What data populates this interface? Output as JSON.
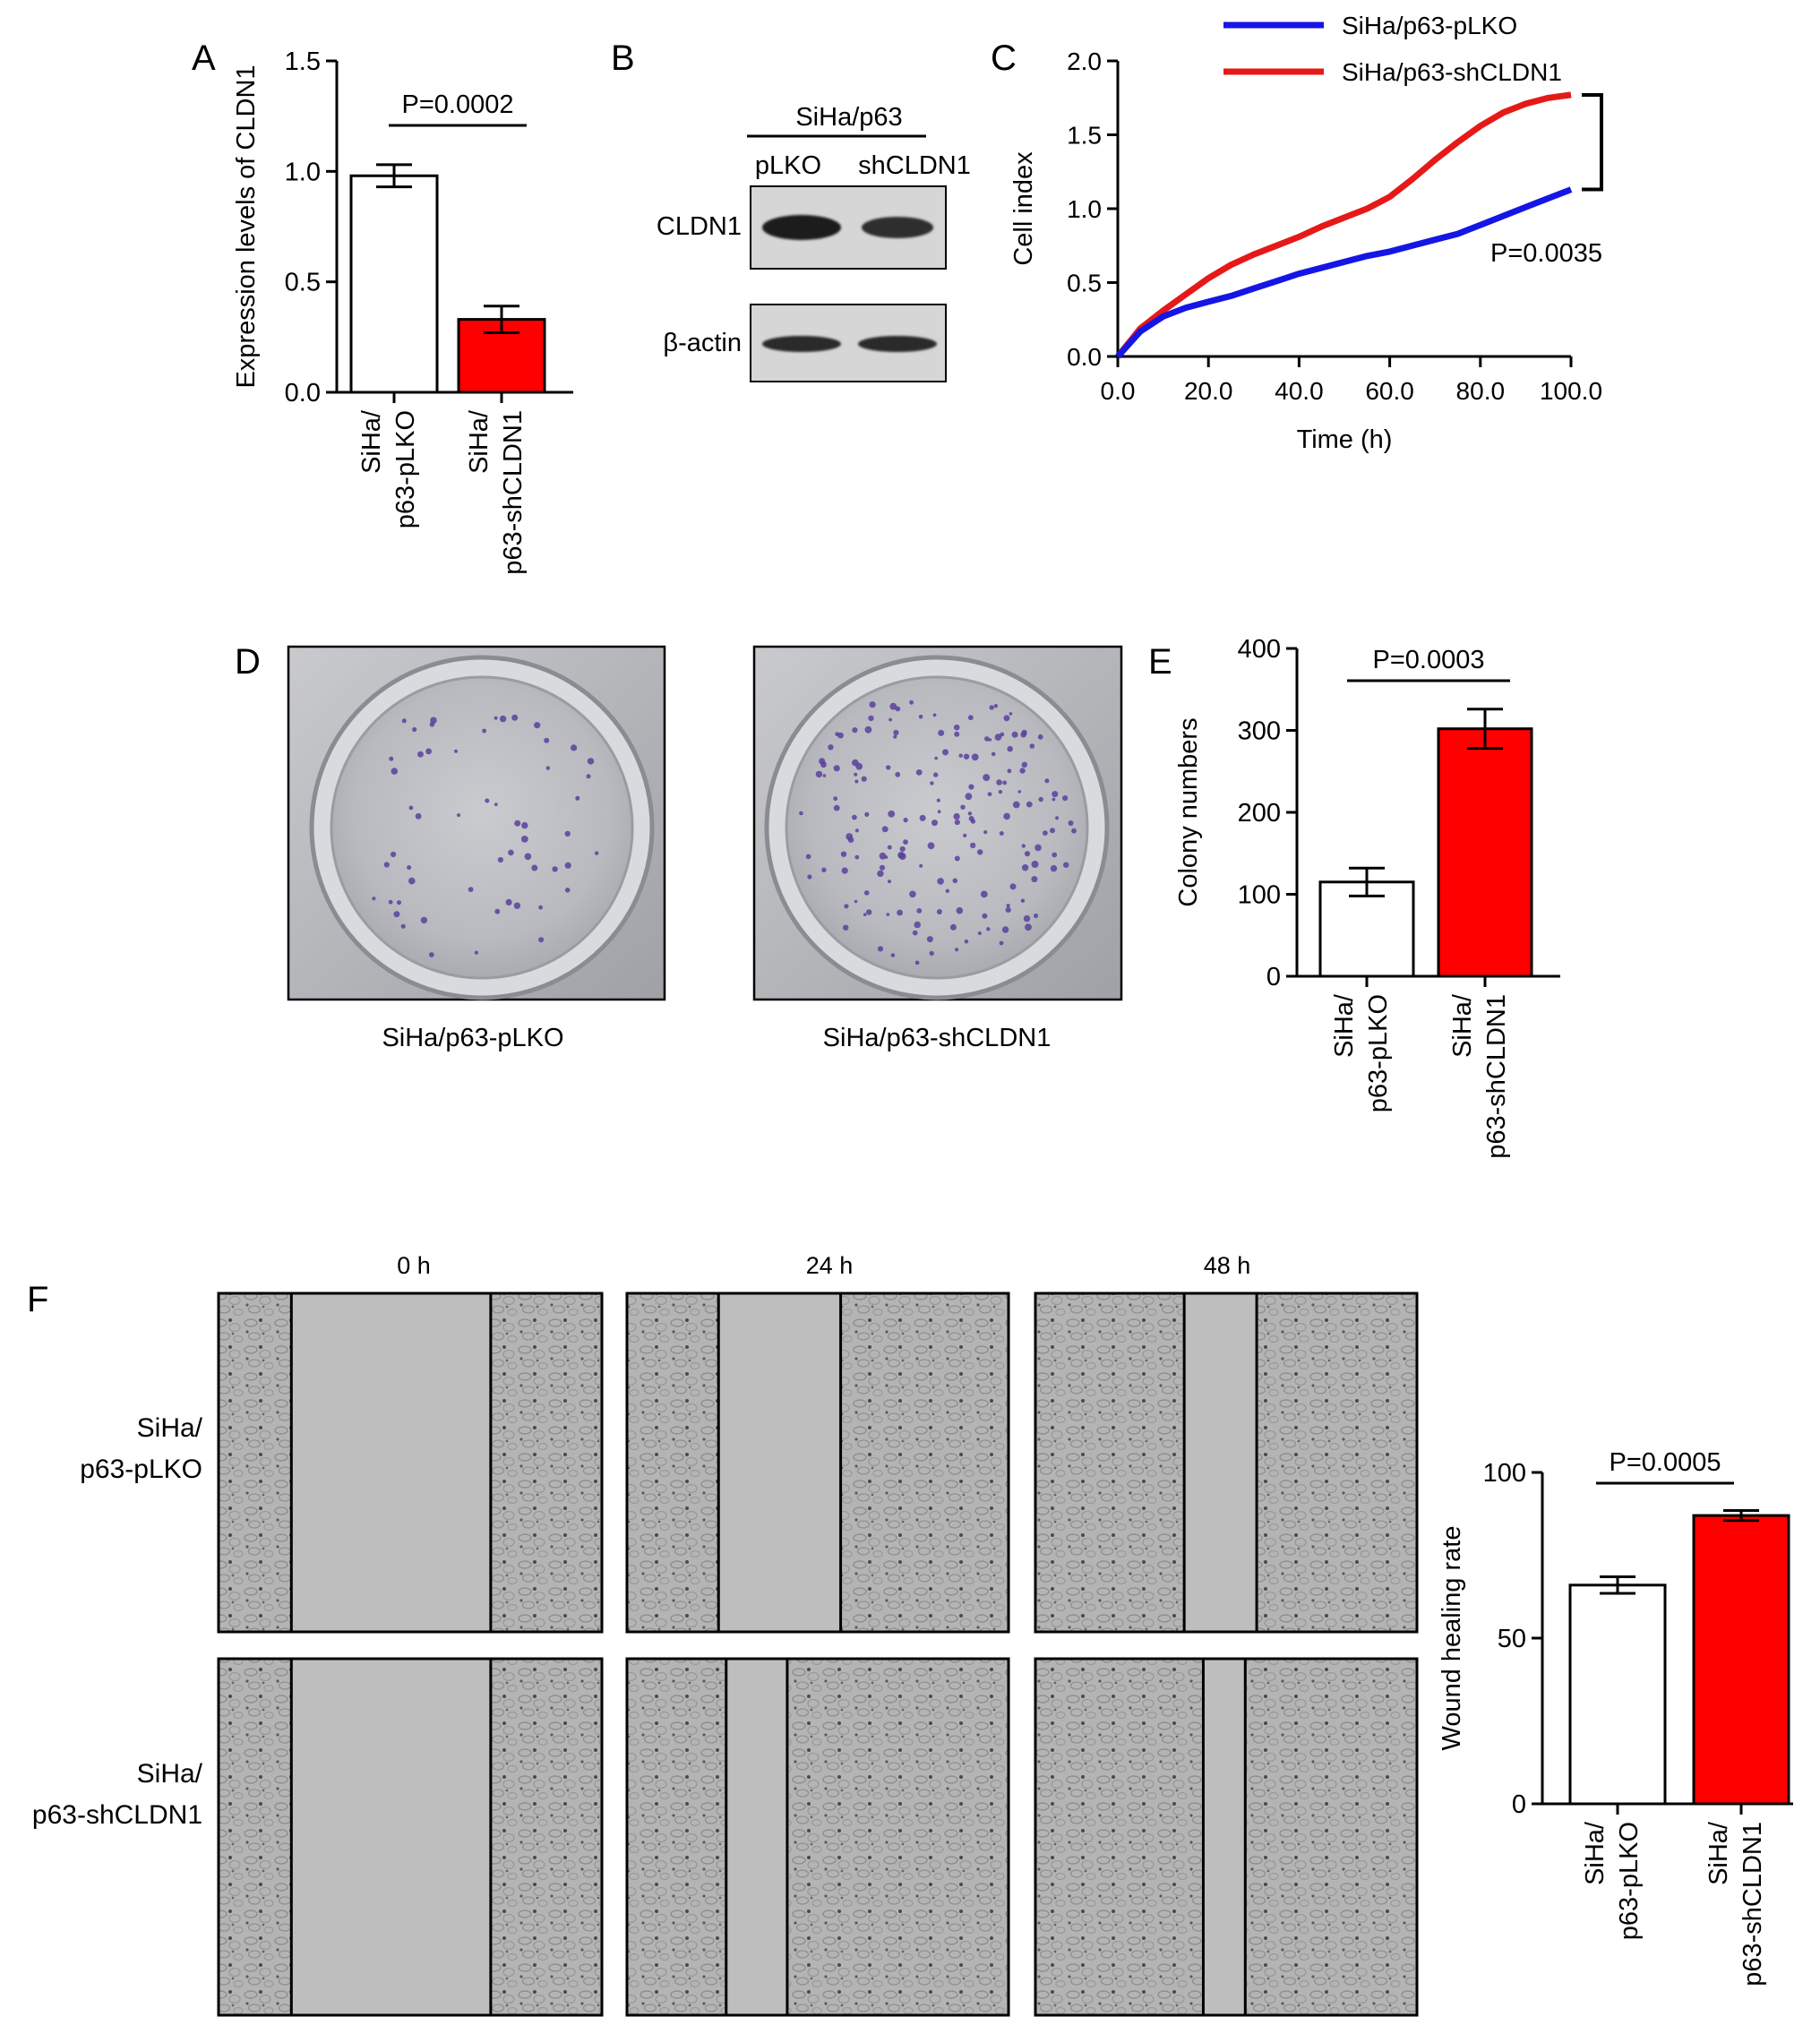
{
  "panel_labels": {
    "a": "A",
    "b": "B",
    "c": "C",
    "d": "D",
    "e": "E",
    "f": "F"
  },
  "colors": {
    "control": "#ffffff",
    "knockdown": "#ff0000",
    "line_control": "#1515e6",
    "line_knockdown": "#e61919"
  },
  "groups": {
    "control_line1": "SiHa/",
    "control_line2": "p63-pLKO",
    "knock_line1": "SiHa/",
    "knock_line2": "p63-shCLDN1"
  },
  "panel_b": {
    "header": "SiHa/p63",
    "lanes": [
      "pLKO",
      "shCLDN1"
    ],
    "row_labels": [
      "CLDN1",
      "β-actin"
    ]
  },
  "panel_d": {
    "captions": [
      "SiHa/p63-pLKO",
      "SiHa/p63-shCLDN1"
    ]
  },
  "panel_f": {
    "time_labels": [
      "0 h",
      "24 h",
      "48 h"
    ],
    "row_labels": [
      {
        "line1": "SiHa/",
        "line2": "p63-pLKO"
      },
      {
        "line1": "SiHa/",
        "line2": "p63-shCLDN1"
      }
    ]
  },
  "chart_data": [
    {
      "panel": "A",
      "type": "bar",
      "categories": [
        "SiHa/p63-pLKO",
        "SiHa/p63-shCLDN1"
      ],
      "values": [
        0.98,
        0.33
      ],
      "errors": [
        0.05,
        0.06
      ],
      "ylabel": "Expression levels of CLDN1",
      "ylim": [
        0,
        1.5
      ],
      "yticks": [
        "0.0",
        "0.5",
        "1.0",
        "1.5"
      ],
      "annotation": "P=0.0002"
    },
    {
      "panel": "C",
      "type": "line",
      "xlabel": "Time (h)",
      "ylabel": "Cell index",
      "xlim": [
        0,
        100
      ],
      "ylim": [
        0,
        2.0
      ],
      "xticks": [
        "0.0",
        "20.0",
        "40.0",
        "60.0",
        "80.0",
        "100.0"
      ],
      "yticks": [
        "0.0",
        "0.5",
        "1.0",
        "1.5",
        "2.0"
      ],
      "annotation": "P=0.0035",
      "legend": "top",
      "series": [
        {
          "name": "SiHa/p63-pLKO",
          "x": [
            0,
            5,
            10,
            15,
            20,
            25,
            30,
            35,
            40,
            45,
            50,
            55,
            60,
            65,
            70,
            75,
            80,
            85,
            90,
            95,
            100
          ],
          "y": [
            0.0,
            0.17,
            0.27,
            0.33,
            0.37,
            0.41,
            0.46,
            0.51,
            0.56,
            0.6,
            0.64,
            0.68,
            0.71,
            0.75,
            0.79,
            0.83,
            0.89,
            0.95,
            1.01,
            1.07,
            1.13
          ]
        },
        {
          "name": "SiHa/p63-shCLDN1",
          "x": [
            0,
            5,
            10,
            15,
            20,
            25,
            30,
            35,
            40,
            45,
            50,
            55,
            60,
            65,
            70,
            75,
            80,
            85,
            90,
            95,
            100
          ],
          "y": [
            0.0,
            0.19,
            0.31,
            0.42,
            0.53,
            0.62,
            0.69,
            0.75,
            0.81,
            0.88,
            0.94,
            1.0,
            1.08,
            1.2,
            1.33,
            1.45,
            1.56,
            1.65,
            1.71,
            1.75,
            1.77
          ]
        }
      ]
    },
    {
      "panel": "E",
      "type": "bar",
      "categories": [
        "SiHa/p63-pLKO",
        "SiHa/p63-shCLDN1"
      ],
      "values": [
        115,
        302
      ],
      "errors": [
        17,
        24
      ],
      "ylabel": "Colony numbers",
      "ylim": [
        0,
        400
      ],
      "yticks": [
        "0",
        "100",
        "200",
        "300",
        "400"
      ],
      "annotation": "P=0.0003"
    },
    {
      "panel": "F",
      "type": "bar",
      "categories": [
        "SiHa/p63-pLKO",
        "SiHa/p63-shCLDN1"
      ],
      "values": [
        66,
        87
      ],
      "errors": [
        2.5,
        1.5
      ],
      "ylabel": "Wound healing rate",
      "ylim": [
        0,
        100
      ],
      "yticks": [
        "0",
        "50",
        "100"
      ],
      "annotation": "P=0.0005"
    }
  ]
}
